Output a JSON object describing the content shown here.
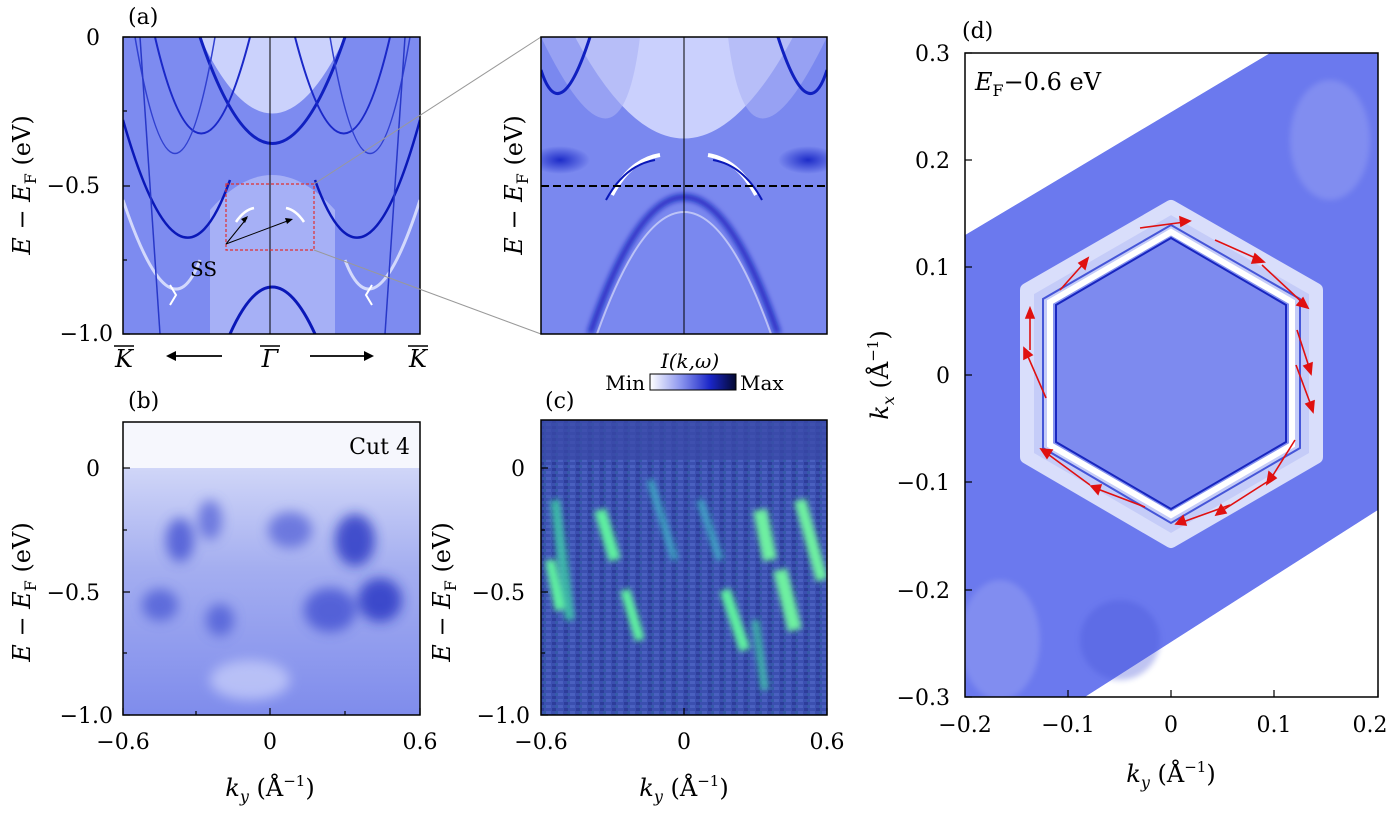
{
  "panels": {
    "a": {
      "label": "(a)",
      "ylabel": "E − E",
      "ylabel_sub": "F",
      "ylabel_unit": " (eV)",
      "yticks": [
        "0",
        "−0.5",
        "−1.0"
      ],
      "xticks": [
        "K",
        "Γ",
        "K"
      ],
      "arrow_left": "←",
      "arrow_right": "⟶",
      "annotation": "SS"
    },
    "inset": {
      "ylabel": "E − E",
      "ylabel_sub": "F",
      "ylabel_unit": " (eV)"
    },
    "b": {
      "label": "(b)",
      "cut_label": "Cut 4",
      "ylabel": "E − E",
      "ylabel_sub": "F",
      "ylabel_unit": " (eV)",
      "yticks": [
        "0",
        "−0.5",
        "−1.0"
      ],
      "xticks": [
        "−0.6",
        "0",
        "0.6"
      ],
      "xlabel": "k",
      "xlabel_sub": "y",
      "xlabel_unit": " (Å",
      "xlabel_sup": "−1",
      "xlabel_close": ")"
    },
    "c": {
      "label": "(c)",
      "ylabel": "E − E",
      "ylabel_sub": "F",
      "ylabel_unit": " (eV)",
      "yticks": [
        "0",
        "−0.5",
        "−1.0"
      ],
      "xticks": [
        "−0.6",
        "0",
        "0.6"
      ],
      "xlabel": "k",
      "xlabel_sub": "y",
      "xlabel_unit": " (Å",
      "xlabel_sup": "−1",
      "xlabel_close": ")"
    },
    "colorbar": {
      "title": "I(k,ω)",
      "min_label": "Min",
      "max_label": "Max"
    },
    "d": {
      "label": "(d)",
      "energy_label": "E",
      "energy_sub": "F",
      "energy_rest": "−0.6 eV",
      "yticks": [
        "0.3",
        "0.2",
        "0.1",
        "0",
        "−0.1",
        "−0.2",
        "−0.3"
      ],
      "xticks": [
        "−0.2",
        "−0.1",
        "0",
        "0.1",
        "0.2"
      ],
      "ylabel": "k",
      "ylabel_sub": "x",
      "ylabel_unit": " (Å",
      "ylabel_sup": "−1",
      "ylabel_close": ")",
      "xlabel": "k",
      "xlabel_sub": "y",
      "xlabel_unit": " (Å",
      "xlabel_sup": "−1",
      "xlabel_close": ")"
    }
  },
  "colors": {
    "band_bg": "#6f7df0",
    "band_light": "#e8ecff",
    "band_dark": "#0a18c8",
    "highlight_box": "#e03030",
    "spin_arrow": "#e01010"
  }
}
